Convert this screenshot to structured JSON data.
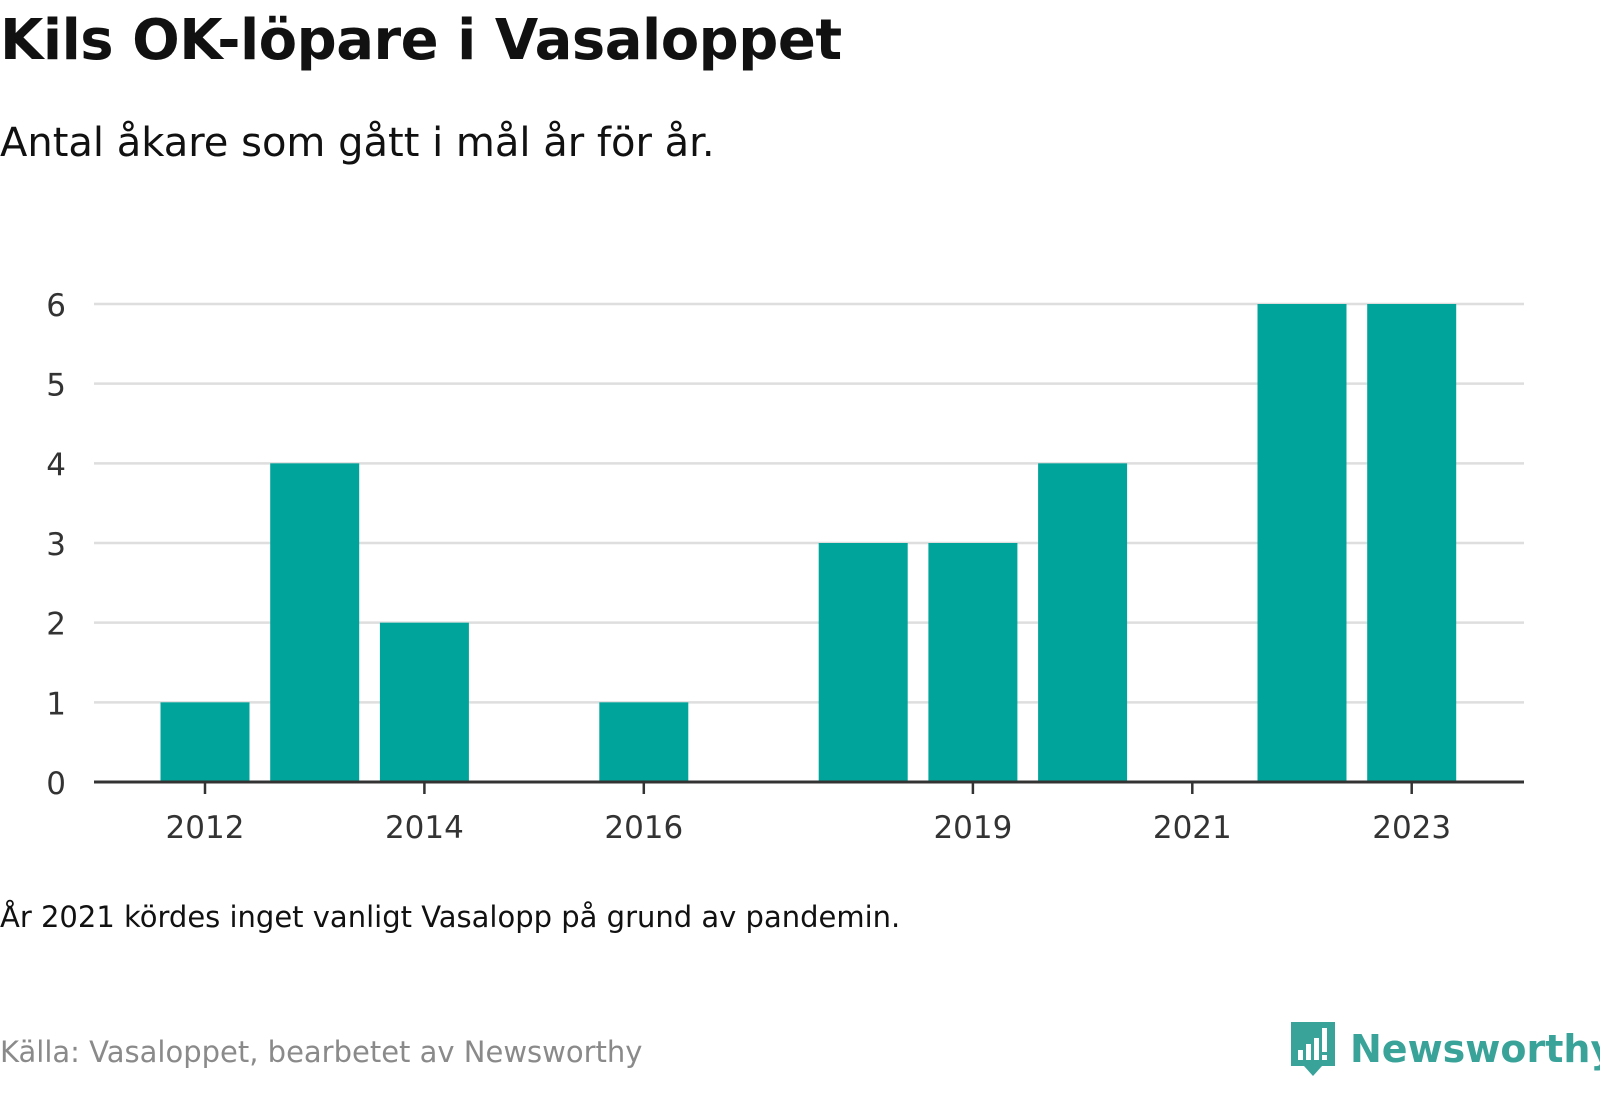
{
  "title": "Kils OK-löpare i Vasaloppet",
  "subtitle": "Antal åkare som gått i mål år för år.",
  "note": "År 2021 kördes inget vanligt Vasalopp på grund av pandemin.",
  "source": "Källa: Vasaloppet, bearbetet av Newsworthy",
  "logo": {
    "text": "Newsworthy",
    "icon": "newsworthy-logo-icon"
  },
  "colors": {
    "bar": "#00a49a",
    "grid": "#dedede",
    "axis": "#333333",
    "logo": "#39a39a"
  },
  "chart_data": {
    "type": "bar",
    "categories": [
      "2012",
      "2013",
      "2014",
      "2015",
      "2016",
      "2017",
      "2018",
      "2019",
      "2020",
      "2021",
      "2022",
      "2023"
    ],
    "values": [
      1,
      4,
      2,
      0,
      1,
      0,
      3,
      3,
      4,
      0,
      6,
      6
    ],
    "tick_labels": [
      "2012",
      "2014",
      "2016",
      "2019",
      "2021",
      "2023"
    ],
    "yticks": [
      0,
      1,
      2,
      3,
      4,
      5,
      6
    ],
    "ylim": [
      0,
      6
    ],
    "xlabel": "",
    "ylabel": "",
    "grid": true,
    "legend": "none"
  }
}
